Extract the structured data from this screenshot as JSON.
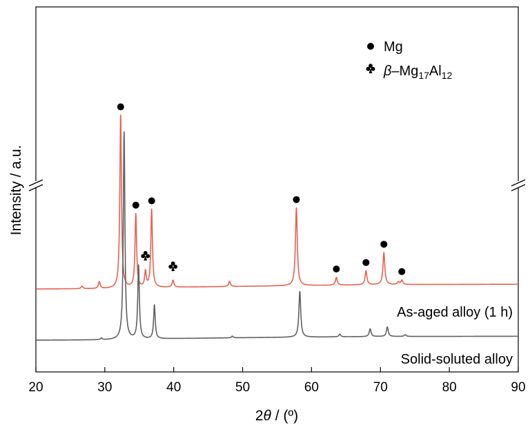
{
  "chart_data": {
    "type": "line",
    "xlabel": "2θ / (º)",
    "xlabel_parts": {
      "main": "2",
      "theta": "θ",
      "rest": " / (º)"
    },
    "ylabel": "Intensity / a.u.",
    "xlim": [
      20,
      90
    ],
    "xticks": [
      20,
      30,
      40,
      50,
      60,
      70,
      80,
      90
    ],
    "y_ticks_shown": false,
    "y_axis_break": true,
    "legend": {
      "position": "top-right",
      "entries": [
        {
          "marker": "circle",
          "label": "Mg"
        },
        {
          "marker": "club",
          "label": "β–Mg17Al12",
          "parts": {
            "beta": "β",
            "dash": "–Mg",
            "sub1": "17",
            "al": "Al",
            "sub2": "12"
          }
        }
      ]
    },
    "series": [
      {
        "name": "As-aged alloy (1 h)",
        "color": "#e8604c",
        "baseline": [
          [
            20,
            0.0
          ],
          [
            30,
            0.03
          ],
          [
            40,
            0.2
          ],
          [
            50,
            0.3
          ],
          [
            60,
            0.4
          ],
          [
            70,
            0.5
          ],
          [
            90,
            0.55
          ]
        ],
        "peaks": [
          {
            "x": 26.7,
            "h": 0.3,
            "w": 0.15
          },
          {
            "x": 29.2,
            "h": 0.8,
            "w": 0.15
          },
          {
            "x": 32.3,
            "h": 20.0,
            "w": 0.14
          },
          {
            "x": 34.5,
            "h": 8.5,
            "w": 0.14
          },
          {
            "x": 35.9,
            "h": 1.8,
            "w": 0.14
          },
          {
            "x": 36.8,
            "h": 9.0,
            "w": 0.14
          },
          {
            "x": 39.9,
            "h": 0.8,
            "w": 0.15
          },
          {
            "x": 48.1,
            "h": 0.6,
            "w": 0.15
          },
          {
            "x": 57.8,
            "h": 9.0,
            "w": 0.16
          },
          {
            "x": 63.6,
            "h": 0.9,
            "w": 0.16
          },
          {
            "x": 67.9,
            "h": 1.6,
            "w": 0.16
          },
          {
            "x": 70.5,
            "h": 3.7,
            "w": 0.16
          },
          {
            "x": 72.6,
            "h": 0.3,
            "w": 0.16
          },
          {
            "x": 73.1,
            "h": 0.5,
            "w": 0.16
          }
        ]
      },
      {
        "name": "Solid-soluted alloy",
        "color": "#5f5f5f",
        "baseline": [
          [
            20,
            0.0
          ],
          [
            30,
            0.02
          ],
          [
            40,
            0.18
          ],
          [
            50,
            0.28
          ],
          [
            60,
            0.35
          ],
          [
            70,
            0.42
          ],
          [
            90,
            0.45
          ]
        ],
        "peaks": [
          {
            "x": 29.5,
            "h": 0.2,
            "w": 0.15
          },
          {
            "x": 32.8,
            "h": 24.0,
            "w": 0.14
          },
          {
            "x": 34.9,
            "h": 8.5,
            "w": 0.14
          },
          {
            "x": 37.2,
            "h": 3.9,
            "w": 0.14
          },
          {
            "x": 48.5,
            "h": 0.2,
            "w": 0.15
          },
          {
            "x": 58.3,
            "h": 5.3,
            "w": 0.16
          },
          {
            "x": 64.1,
            "h": 0.3,
            "w": 0.16
          },
          {
            "x": 68.5,
            "h": 0.9,
            "w": 0.16
          },
          {
            "x": 71.0,
            "h": 1.1,
            "w": 0.16
          },
          {
            "x": 73.6,
            "h": 0.2,
            "w": 0.16
          }
        ]
      }
    ],
    "annotations": [
      {
        "marker": "circle",
        "x": 32.3,
        "series": 0
      },
      {
        "marker": "circle",
        "x": 34.5,
        "series": 0
      },
      {
        "marker": "circle",
        "x": 36.8,
        "series": 0
      },
      {
        "marker": "club",
        "x": 35.9,
        "series": 0
      },
      {
        "marker": "club",
        "x": 39.9,
        "series": 0
      },
      {
        "marker": "circle",
        "x": 57.8,
        "series": 0
      },
      {
        "marker": "circle",
        "x": 63.6,
        "series": 0
      },
      {
        "marker": "circle",
        "x": 67.9,
        "series": 0
      },
      {
        "marker": "circle",
        "x": 70.5,
        "series": 0
      },
      {
        "marker": "circle",
        "x": 73.1,
        "series": 0
      }
    ]
  }
}
